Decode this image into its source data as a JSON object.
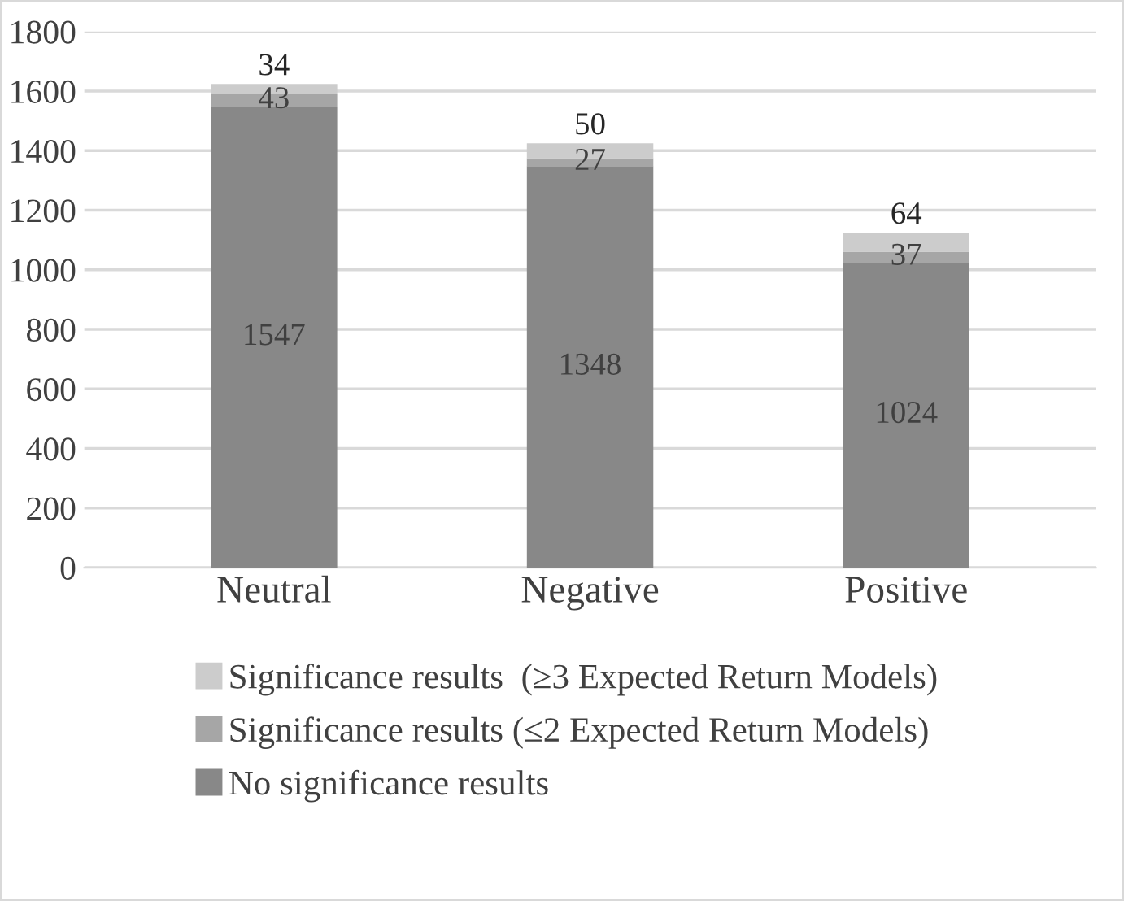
{
  "chart_data": {
    "type": "bar",
    "stacked": true,
    "categories": [
      "Neutral",
      "Negative",
      "Positive"
    ],
    "series": [
      {
        "name": "No significance results",
        "color": "#888888",
        "values": [
          1547,
          1348,
          1024
        ]
      },
      {
        "name": "Significance results (≤2 Expected Return Models)",
        "color": "#a6a6a6",
        "values": [
          43,
          27,
          37
        ]
      },
      {
        "name": "Significance results  (≥3 Expected Return Models)",
        "color": "#cccccc",
        "values": [
          34,
          50,
          64
        ]
      }
    ],
    "ylim": [
      0,
      1800
    ],
    "yticks": [
      0,
      200,
      400,
      600,
      800,
      1000,
      1200,
      1400,
      1600,
      1800
    ],
    "grid": "y",
    "legend": "bottom",
    "data_labels": true
  }
}
